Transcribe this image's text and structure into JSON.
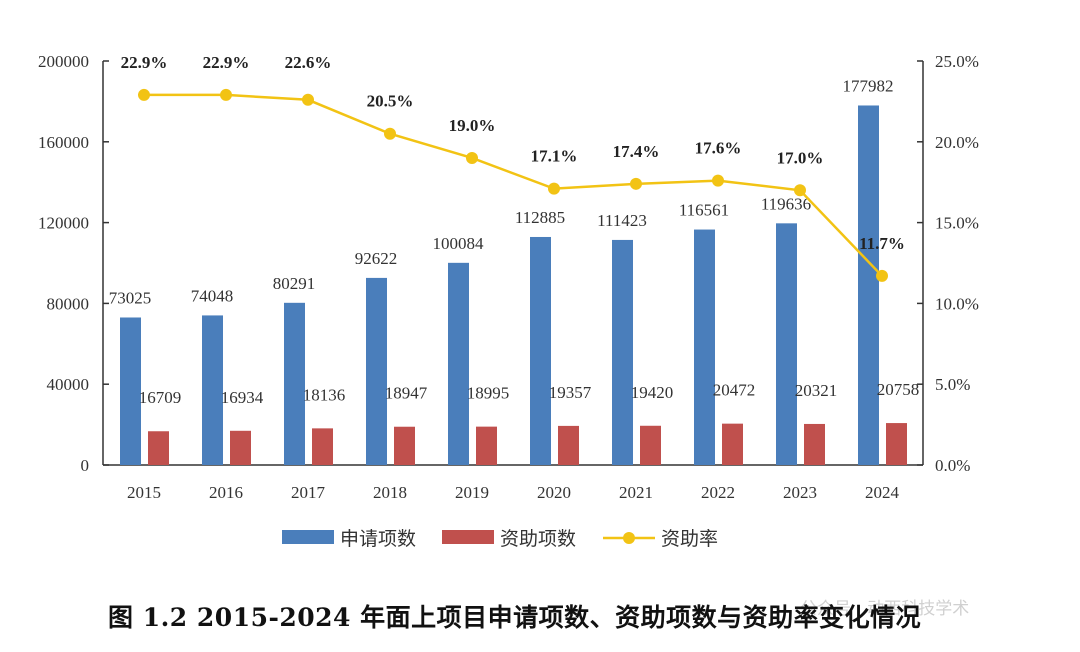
{
  "chart_data": {
    "type": "bar",
    "categories": [
      "2015",
      "2016",
      "2017",
      "2018",
      "2019",
      "2020",
      "2021",
      "2022",
      "2023",
      "2024"
    ],
    "series": [
      {
        "name": "申请项数",
        "type": "bar",
        "axis": "left",
        "color": "#4a7ebb",
        "values": [
          73025,
          74048,
          80291,
          92622,
          100084,
          112885,
          111423,
          116561,
          119636,
          177982
        ]
      },
      {
        "name": "资助项数",
        "type": "bar",
        "axis": "left",
        "color": "#c0504d",
        "values": [
          16709,
          16934,
          18136,
          18947,
          18995,
          19357,
          19420,
          20472,
          20321,
          20758
        ]
      },
      {
        "name": "资助率",
        "type": "line",
        "axis": "right",
        "color": "#f2c314",
        "values": [
          22.9,
          22.9,
          22.6,
          20.5,
          19.0,
          17.1,
          17.4,
          17.6,
          17.0,
          11.7
        ],
        "labels": [
          "22.9%",
          "22.9%",
          "22.6%",
          "20.5%",
          "19.0%",
          "17.1%",
          "17.4%",
          "17.6%",
          "17.0%",
          "11.7%"
        ]
      }
    ],
    "ylim_left": [
      0,
      200000
    ],
    "yticks_left": [
      "0",
      "40000",
      "80000",
      "120000",
      "160000",
      "200000"
    ],
    "ylim_right": [
      0,
      25
    ],
    "yticks_right": [
      "0.0%",
      "5.0%",
      "10.0%",
      "15.0%",
      "20.0%",
      "25.0%"
    ],
    "grid": false,
    "legend_placement": "bottom"
  },
  "caption": "图 1.2  2015-2024 年面上项目申请项数、资助项数与资助率变化情况",
  "watermark": "公众号 · 动西科技学术"
}
